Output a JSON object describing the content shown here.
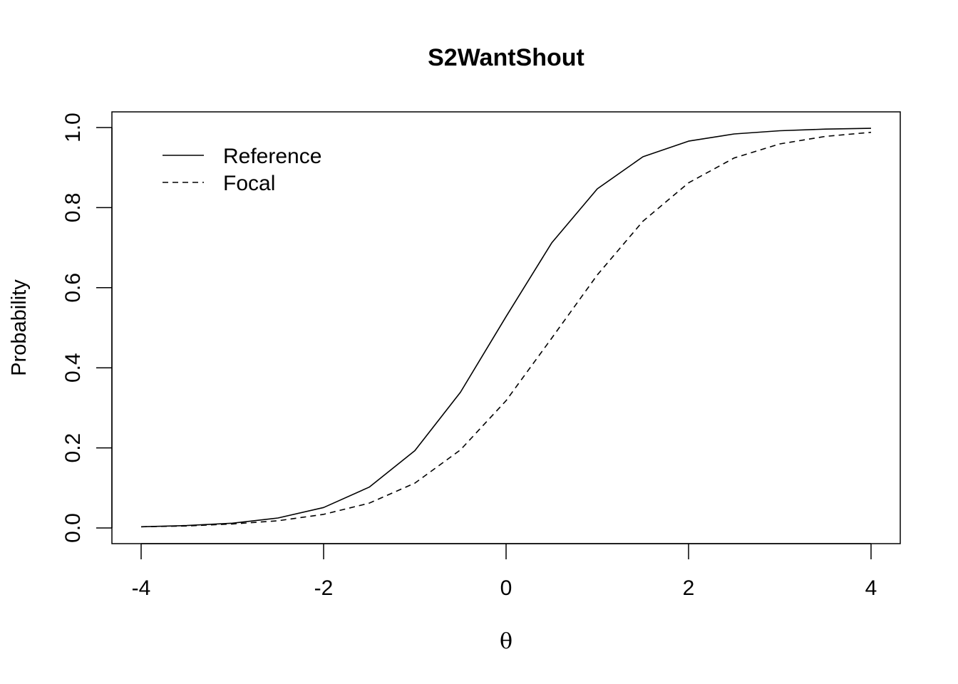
{
  "chart_data": {
    "type": "line",
    "title": "S2WantShout",
    "xlabel": "θ",
    "ylabel": "Probability",
    "xlim": [
      -4,
      4
    ],
    "ylim": [
      0,
      1
    ],
    "x_ticks": [
      -4,
      -2,
      0,
      2,
      4
    ],
    "x_tick_labels": [
      "-4",
      "-2",
      "0",
      "2",
      "4"
    ],
    "y_ticks": [
      0,
      0.2,
      0.4,
      0.6,
      0.8,
      1.0
    ],
    "y_tick_labels": [
      "0.0",
      "0.2",
      "0.4",
      "0.6",
      "0.8",
      "1.0"
    ],
    "grid": false,
    "legend_position": "top-left",
    "legend_boxed": false,
    "x": [
      -4,
      -3.5,
      -3,
      -2.5,
      -2,
      -1.5,
      -1,
      -0.5,
      0,
      0.5,
      1,
      1.5,
      2,
      2.5,
      3,
      3.5,
      4
    ],
    "series": [
      {
        "name": "Reference",
        "line_style": "solid",
        "color": "#000000",
        "values": [
          0.003,
          0.006,
          0.012,
          0.025,
          0.051,
          0.102,
          0.193,
          0.339,
          0.528,
          0.712,
          0.847,
          0.927,
          0.966,
          0.984,
          0.992,
          0.996,
          0.998
        ]
      },
      {
        "name": "Focal",
        "line_style": "dashed",
        "color": "#000000",
        "values": [
          0.003,
          0.005,
          0.01,
          0.018,
          0.034,
          0.062,
          0.112,
          0.195,
          0.318,
          0.474,
          0.632,
          0.766,
          0.862,
          0.924,
          0.959,
          0.978,
          0.988
        ]
      }
    ]
  }
}
